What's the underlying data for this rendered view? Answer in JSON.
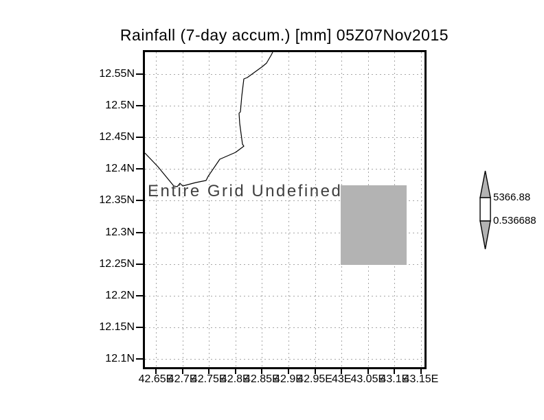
{
  "title": "Rainfall (7-day accum.) [mm] 05Z07Nov2015",
  "map": {
    "undefined_label": "Entire Grid Undefined"
  },
  "axes": {
    "lat_ticks": [
      "12.55N",
      "12.5N",
      "12.45N",
      "12.4N",
      "12.35N",
      "12.3N",
      "12.25N",
      "12.2N",
      "12.15N",
      "12.1N"
    ],
    "lon_ticks": [
      "42.65E",
      "42.7E",
      "42.75E",
      "42.8E",
      "42.85E",
      "42.9E",
      "42.95E",
      "43E",
      "43.05E",
      "43.1E",
      "43.15E"
    ]
  },
  "colorbar": {
    "max_label": "5366.88",
    "min_label": "0.536688"
  },
  "colors": {
    "shade_gray": "#b3b3b3",
    "grid_dots": "#a6a6a6",
    "annotation_text": "#404040",
    "ink": "#000000",
    "background": "#ffffff"
  },
  "chart_data": {
    "type": "heatmap",
    "title": "Rainfall (7-day accum.) [mm] 05Z07Nov2015",
    "variable": "Rainfall (7-day accum.)",
    "units": "mm",
    "valid_time": "05Z07Nov2015",
    "x_tick_labels": [
      "42.65E",
      "42.7E",
      "42.75E",
      "42.8E",
      "42.85E",
      "42.9E",
      "42.95E",
      "43E",
      "43.05E",
      "43.1E",
      "43.15E"
    ],
    "y_tick_labels": [
      "12.55N",
      "12.5N",
      "12.45N",
      "12.4N",
      "12.35N",
      "12.3N",
      "12.25N",
      "12.2N",
      "12.15N",
      "12.1N"
    ],
    "xlim_deg_east": [
      42.625,
      43.165
    ],
    "ylim_deg_north": [
      12.085,
      12.59
    ],
    "grid": true,
    "annotation": "Entire Grid Undefined",
    "note": "All grid values undefined; no rainfall field drawn, only a gray undefined-shade box",
    "undefined_shade_box": {
      "lon_east": [
        43.0,
        43.125
      ],
      "lat_north": [
        12.25,
        12.375
      ]
    },
    "colorbar": {
      "position": "right",
      "min": 0.536688,
      "max": 5366.88
    }
  }
}
